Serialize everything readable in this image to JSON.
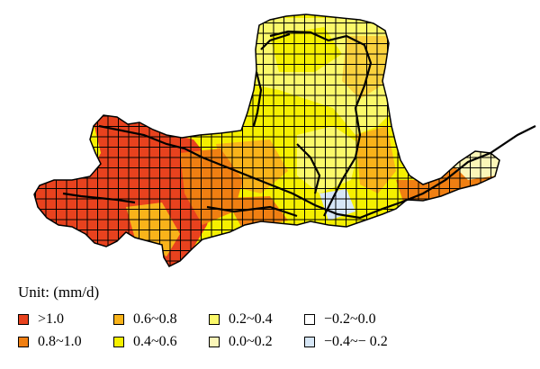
{
  "legend": {
    "title": "Unit: (mm/d)",
    "items": [
      {
        "label": ">1.0",
        "color": "#e8421e"
      },
      {
        "label": "0.8~1.0",
        "color": "#f07f12"
      },
      {
        "label": "0.6~0.8",
        "color": "#f9b31a"
      },
      {
        "label": "0.4~0.6",
        "color": "#f5f000"
      },
      {
        "label": "0.2~0.4",
        "color": "#fbf96a"
      },
      {
        "label": "0.0~0.2",
        "color": "#fbf6b8"
      },
      {
        "label": "−0.2~0.0",
        "color": "#ffffff"
      },
      {
        "label": "−0.4~− 0.2",
        "color": "#d6e6f6"
      }
    ]
  },
  "icons": {
    "river": "river-line",
    "grid": "grid-cell"
  }
}
